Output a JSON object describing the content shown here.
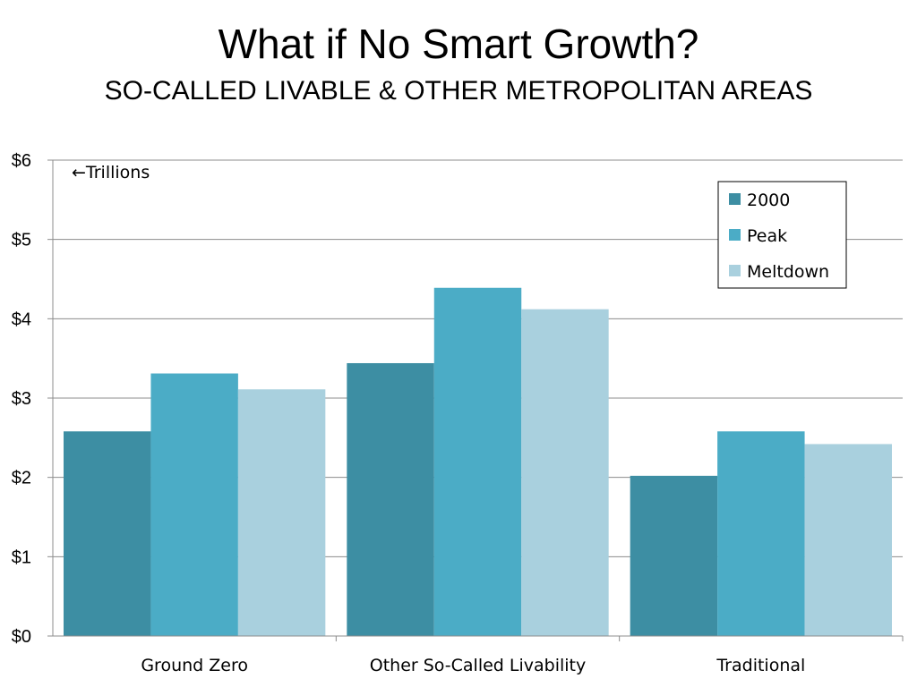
{
  "chart_data": {
    "type": "bar",
    "title": "What if No Smart Growth?",
    "subtitle": "SO-CALLED LIVABLE & OTHER METROPOLITAN AREAS",
    "annotation": "←Trillions",
    "categories": [
      "Ground Zero",
      "Other So-Called Livability",
      "Traditional"
    ],
    "series": [
      {
        "name": "2000",
        "color": "#3d8ea3",
        "values": [
          2.58,
          3.44,
          2.02
        ]
      },
      {
        "name": "Peak",
        "color": "#4bacc6",
        "values": [
          3.31,
          4.39,
          2.58
        ]
      },
      {
        "name": "Meltdown",
        "color": "#a9d0de",
        "values": [
          3.11,
          4.12,
          2.42
        ]
      }
    ],
    "ylim": [
      0,
      6
    ],
    "yticks": [
      "$0",
      "$1",
      "$2",
      "$3",
      "$4",
      "$5",
      "$6"
    ],
    "xlabel": "",
    "ylabel": "",
    "grid": true,
    "legend_position": "top-right"
  }
}
